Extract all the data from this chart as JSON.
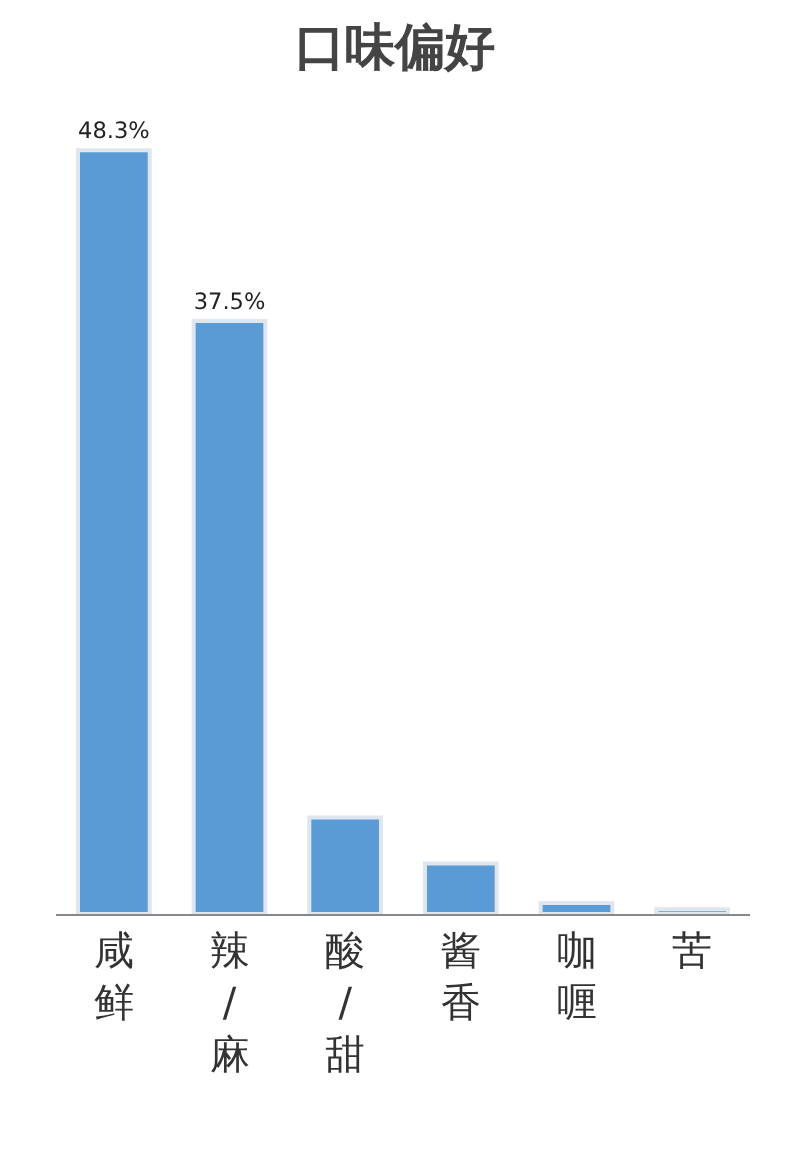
{
  "chart_data": {
    "type": "bar",
    "title": "口味偏好",
    "categories": [
      "咸鲜",
      "辣/麻",
      "酸/甜",
      "酱香",
      "咖喱",
      "苦"
    ],
    "values": [
      48.3,
      37.5,
      6.1,
      3.2,
      0.7,
      0.3
    ],
    "value_labels": [
      "48.3%",
      "37.5%",
      null,
      null,
      null,
      null
    ],
    "color": "#5b9bd5"
  }
}
